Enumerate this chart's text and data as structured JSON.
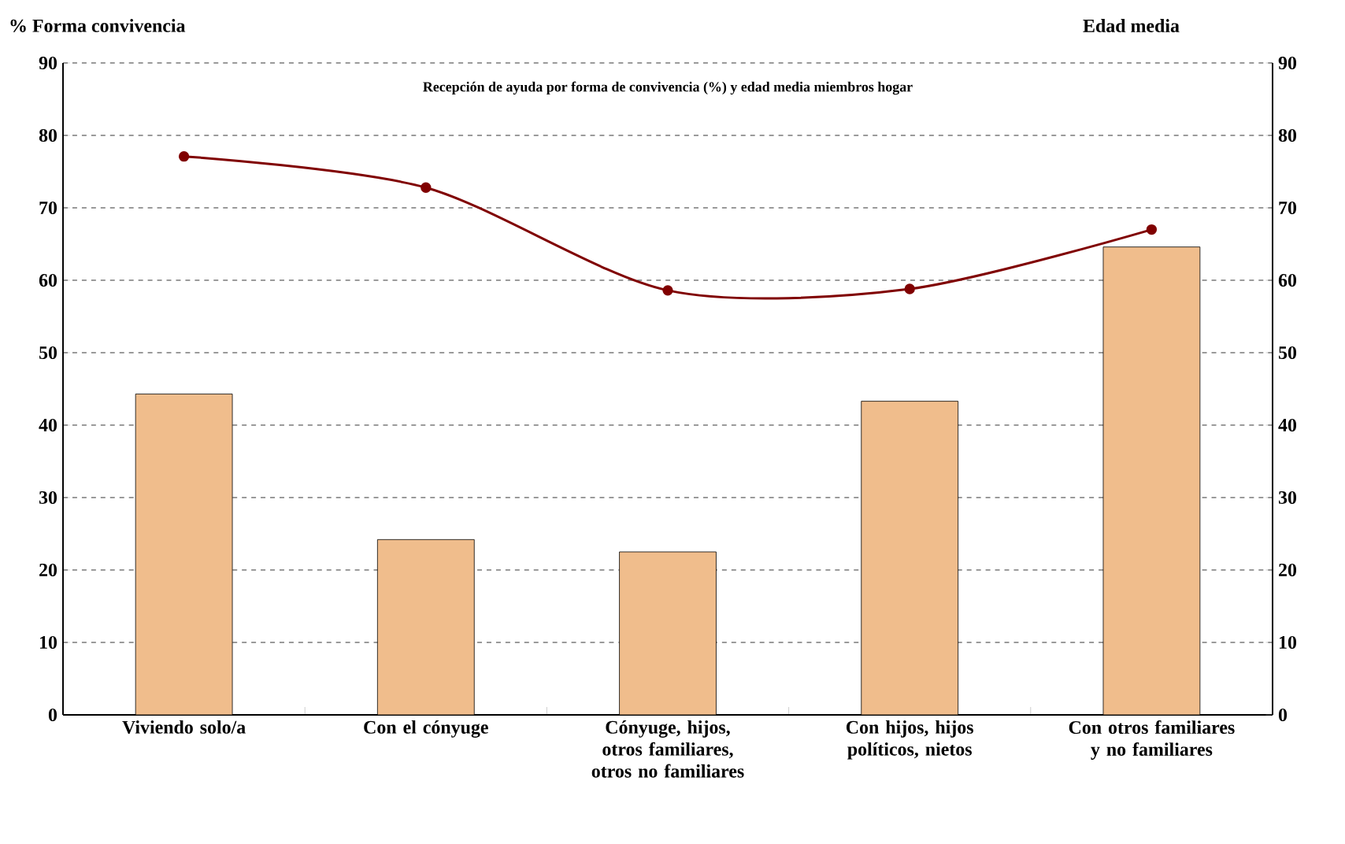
{
  "chart_data": {
    "type": "bar",
    "title": "Recepción de ayuda por forma de convivencia (%) y edad media miembros hogar",
    "ylabel": "% Forma convivencia",
    "y2label": "Edad media",
    "categories": [
      "Viviendo solo/a",
      "Con el cónyuge",
      "Cónyuge, hijos, otros familiares, otros no familiares",
      "Con hijos, hijos políticos, nietos",
      "Con otros familiares y no familiares"
    ],
    "series": [
      {
        "color": "#f0bd8c",
        "values": [
          44.3,
          24.2,
          22.5,
          43.3,
          64.6
        ]
      },
      {
        "type": "line",
        "axis": "y2",
        "color": "#800000",
        "values": [
          77.1,
          72.8,
          58.6,
          58.8,
          67.0
        ]
      }
    ],
    "ylim": [
      0,
      90
    ],
    "yticks": [
      0,
      10,
      20,
      30,
      40,
      50,
      60,
      70,
      80,
      90
    ],
    "y2lim": [
      0,
      90
    ],
    "y2ticks": [
      0,
      10,
      20,
      30,
      40,
      50,
      60,
      70,
      80,
      90
    ],
    "grid": "y",
    "marker": "circle",
    "line_style": "solid"
  }
}
